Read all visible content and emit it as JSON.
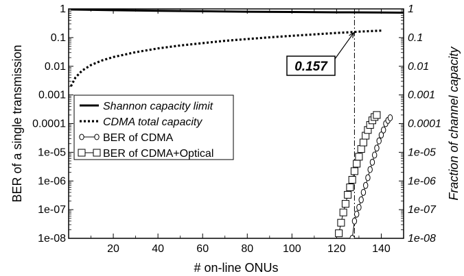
{
  "chart_data": {
    "type": "line",
    "xlabel": "# on-line ONUs",
    "ylabel": "BER of a single transmission",
    "ylabel_right": "Fraction of channel capacity",
    "xlim": [
      0,
      150
    ],
    "ylim": [
      1e-08,
      1
    ],
    "yscale": "log",
    "x_ticks": [
      20,
      40,
      60,
      80,
      100,
      120,
      140
    ],
    "y_ticks": [
      {
        "value": 1,
        "label": "1",
        "right_label": "1"
      },
      {
        "value": 0.1,
        "label": "0.1",
        "right_label": "0.1"
      },
      {
        "value": 0.01,
        "label": "0.01",
        "right_label": "0.01"
      },
      {
        "value": 0.001,
        "label": "0.001",
        "right_label": "0.001"
      },
      {
        "value": 0.0001,
        "label": "0.0001",
        "right_label": "0.0001"
      },
      {
        "value": 1e-05,
        "label": "1e-05",
        "right_label": "1e-05"
      },
      {
        "value": 1e-06,
        "label": "1e-06",
        "right_label": "1e-06"
      },
      {
        "value": 1e-07,
        "label": "1e-07",
        "right_label": "1e-07"
      },
      {
        "value": 1e-08,
        "label": "1e-08",
        "right_label": "1e-08"
      }
    ],
    "grid": false,
    "legend_position": "center-left",
    "series": [
      {
        "name": "Shannon capacity limit",
        "style": "solid-thick",
        "color": "#000000",
        "x": [
          1,
          20,
          40,
          60,
          80,
          100,
          120,
          140,
          150
        ],
        "y": [
          0.95,
          0.9,
          0.86,
          0.83,
          0.8,
          0.78,
          0.76,
          0.75,
          0.74
        ]
      },
      {
        "name": "CDMA total capacity",
        "style": "dotted-thick",
        "color": "#000000",
        "x": [
          1,
          3,
          6,
          10,
          15,
          20,
          30,
          40,
          50,
          60,
          70,
          80,
          90,
          100,
          110,
          120,
          128,
          130,
          140
        ],
        "y": [
          0.002,
          0.004,
          0.007,
          0.011,
          0.016,
          0.021,
          0.031,
          0.042,
          0.053,
          0.064,
          0.077,
          0.089,
          0.102,
          0.115,
          0.129,
          0.145,
          0.157,
          0.161,
          0.175
        ]
      },
      {
        "name": "BER of CDMA",
        "style": "line-circle",
        "color": "#000000",
        "x": [
          127,
          128,
          129,
          130,
          131,
          132,
          133,
          134,
          135,
          136,
          137,
          138,
          139,
          140,
          141,
          142,
          143,
          144
        ],
        "y": [
          1e-08,
          4e-08,
          7e-08,
          1.2e-07,
          2.2e-07,
          4e-07,
          7e-07,
          1.3e-06,
          2.5e-06,
          4.5e-06,
          8e-06,
          1.4e-05,
          2.5e-05,
          4e-05,
          6e-05,
          0.0001,
          0.00013,
          0.00016
        ]
      },
      {
        "name": "BER of CDMA+Optical",
        "style": "line-square",
        "color": "#000000",
        "x": [
          121,
          122,
          123,
          124,
          125,
          126,
          127,
          128,
          129,
          130,
          131,
          132,
          133,
          134,
          135,
          136,
          137,
          138
        ],
        "y": [
          1.5e-08,
          3.5e-08,
          8e-08,
          1.6e-07,
          3.3e-07,
          6e-07,
          1.1e-06,
          2.2e-06,
          4e-06,
          7e-06,
          1.3e-05,
          2.2e-05,
          3.8e-05,
          6e-05,
          9e-05,
          0.00013,
          0.00017,
          0.0002
        ]
      }
    ],
    "annotations": [
      {
        "text": "0.157",
        "x": 128,
        "y": 0.157,
        "type": "boxed-label-with-arrow"
      }
    ],
    "reference_lines": [
      {
        "orientation": "vertical",
        "x": 128,
        "style": "dash-dot"
      }
    ]
  }
}
